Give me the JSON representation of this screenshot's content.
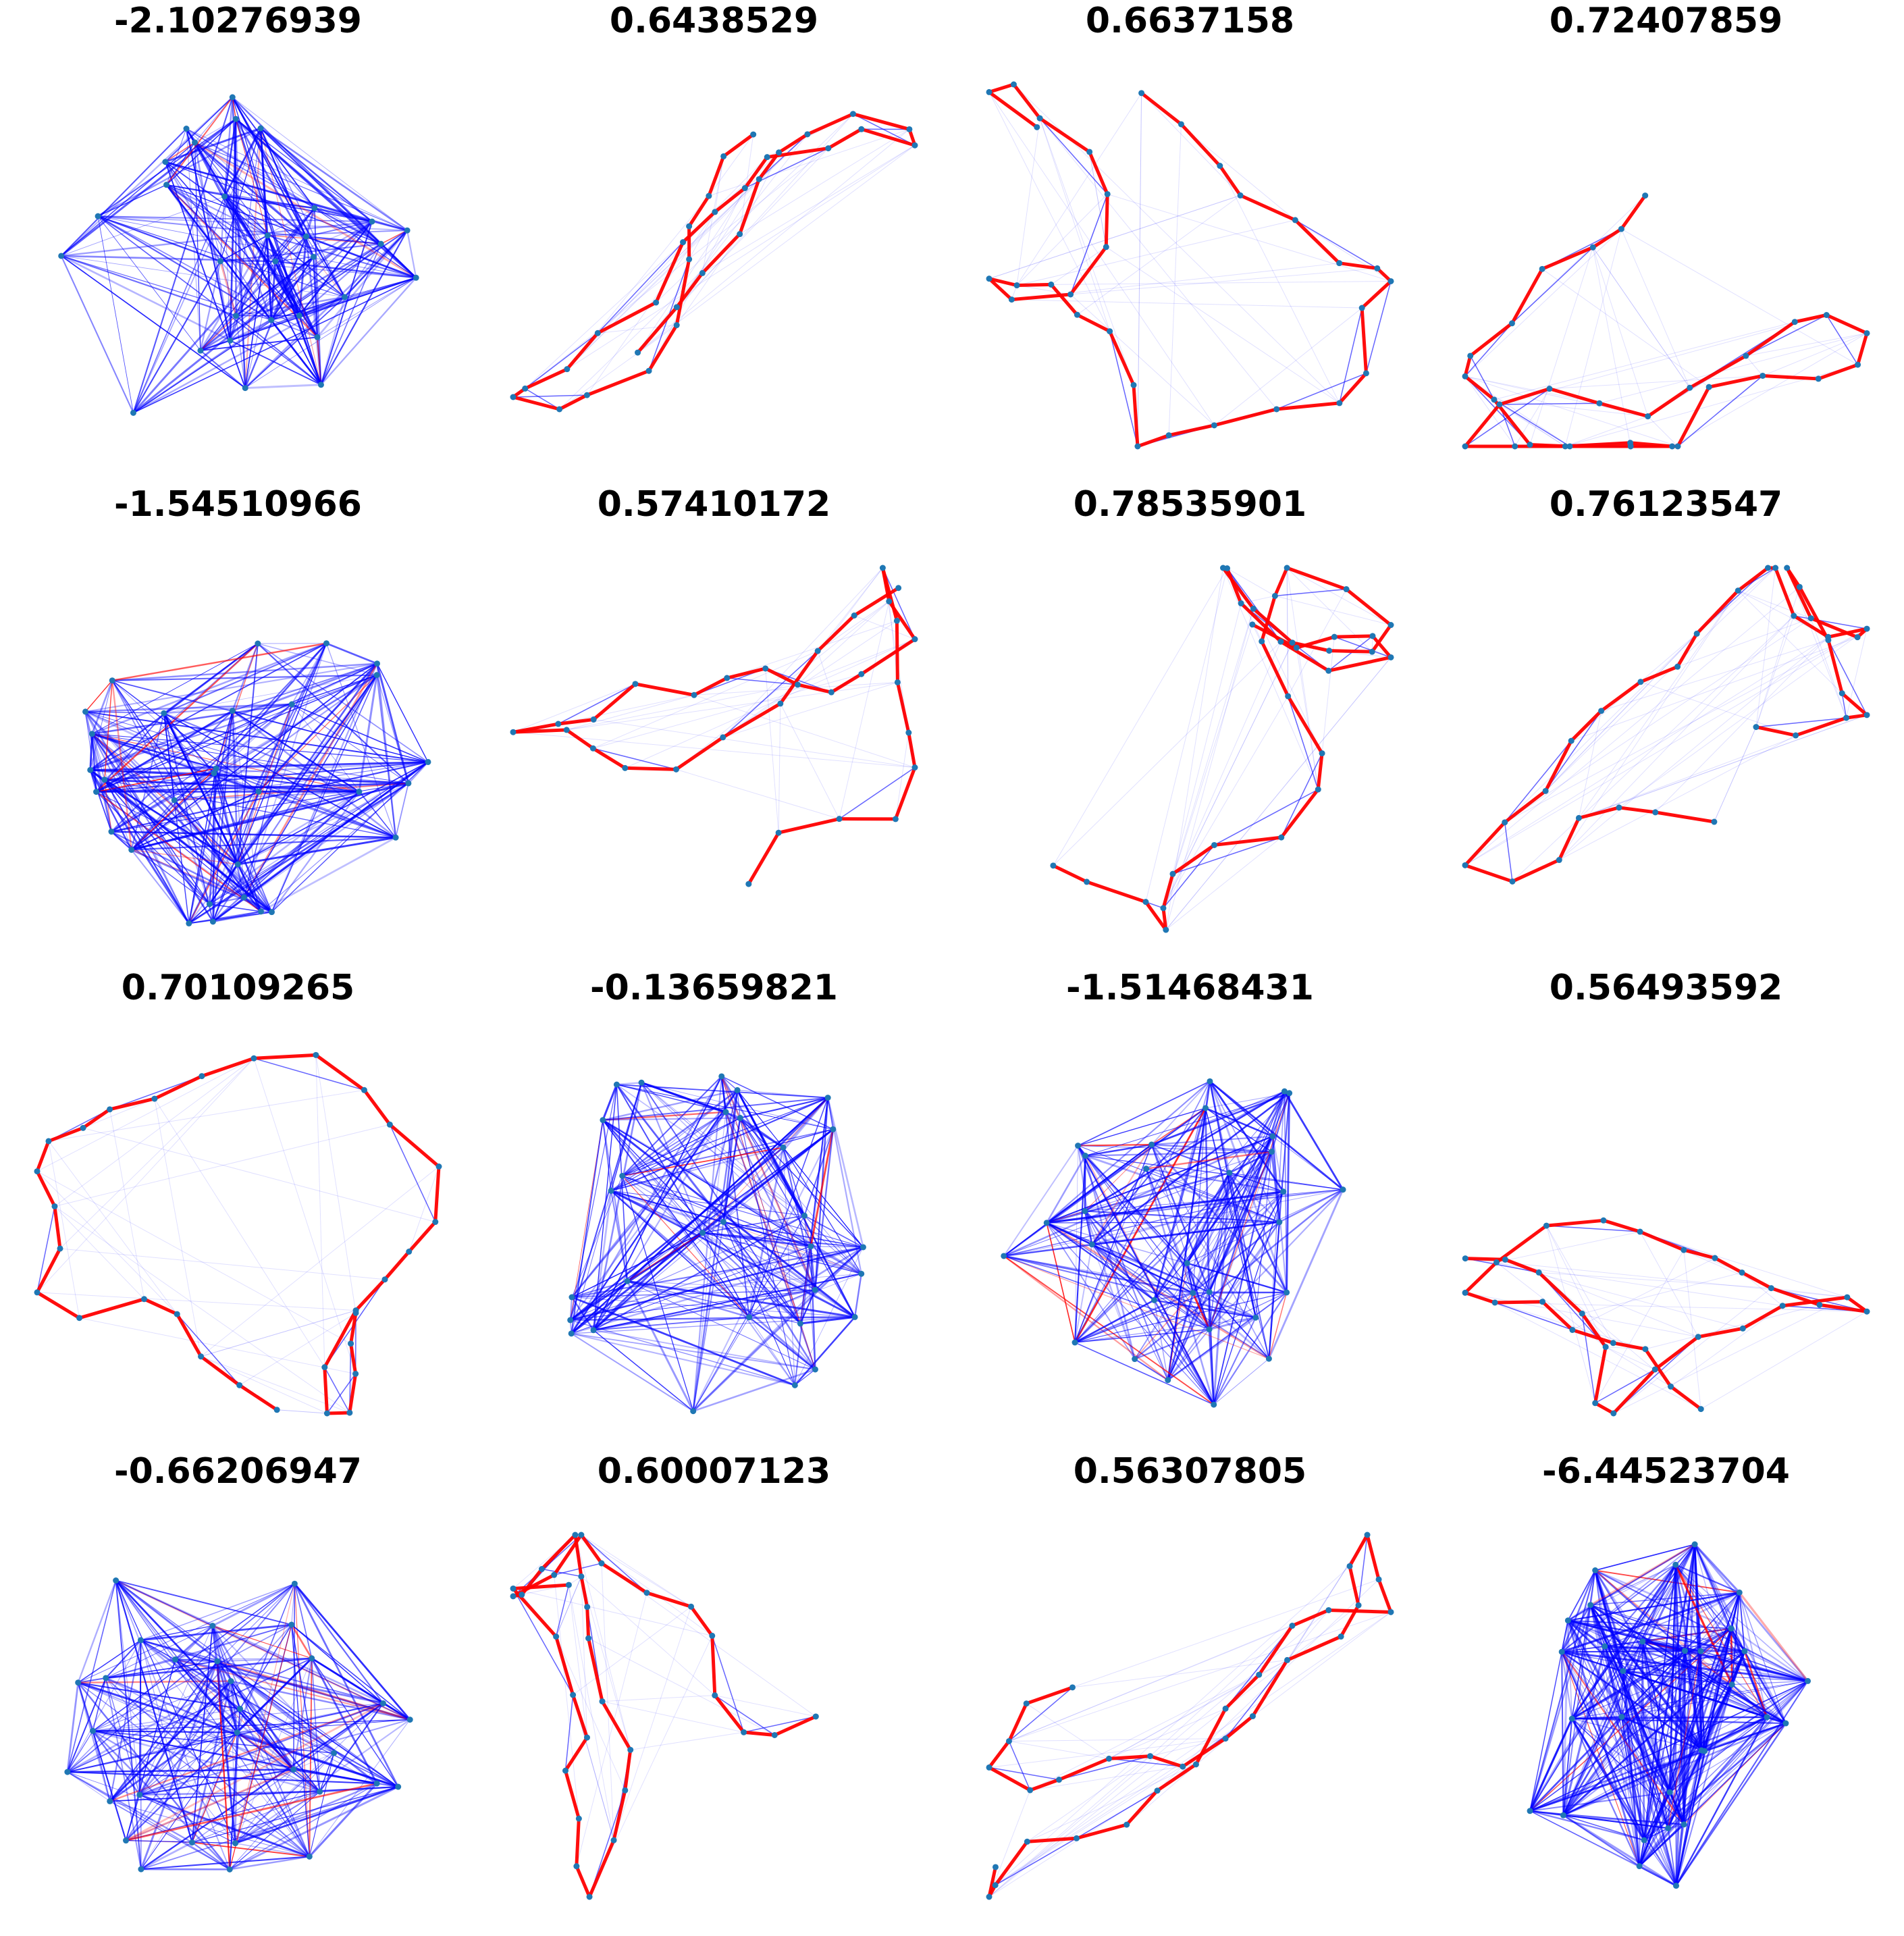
{
  "figure": {
    "colors": {
      "strong_edge": "#ff0000",
      "weak_edge": "#0000ff",
      "node": "#1f77b4",
      "title": "#000000",
      "background": "#ffffff"
    },
    "panels": [
      {
        "title": "-2.10276939",
        "kind": "dense-graph"
      },
      {
        "title": "0.6438529",
        "kind": "chain-graph"
      },
      {
        "title": "0.6637158",
        "kind": "chain-graph"
      },
      {
        "title": "0.72407859",
        "kind": "chain-graph"
      },
      {
        "title": "-1.54510966",
        "kind": "dense-graph"
      },
      {
        "title": "0.57410172",
        "kind": "chain-graph"
      },
      {
        "title": "0.78535901",
        "kind": "chain-graph"
      },
      {
        "title": "0.76123547",
        "kind": "chain-graph"
      },
      {
        "title": "0.70109265",
        "kind": "chain-graph"
      },
      {
        "title": "-0.13659821",
        "kind": "dense-graph"
      },
      {
        "title": "-1.51468431",
        "kind": "dense-graph"
      },
      {
        "title": "0.56493592",
        "kind": "chain-graph"
      },
      {
        "title": "-0.66206947",
        "kind": "dense-graph"
      },
      {
        "title": "0.60007123",
        "kind": "chain-graph"
      },
      {
        "title": "0.56307805",
        "kind": "chain-graph"
      },
      {
        "title": "-6.44523704",
        "kind": "dense-graph"
      }
    ]
  }
}
